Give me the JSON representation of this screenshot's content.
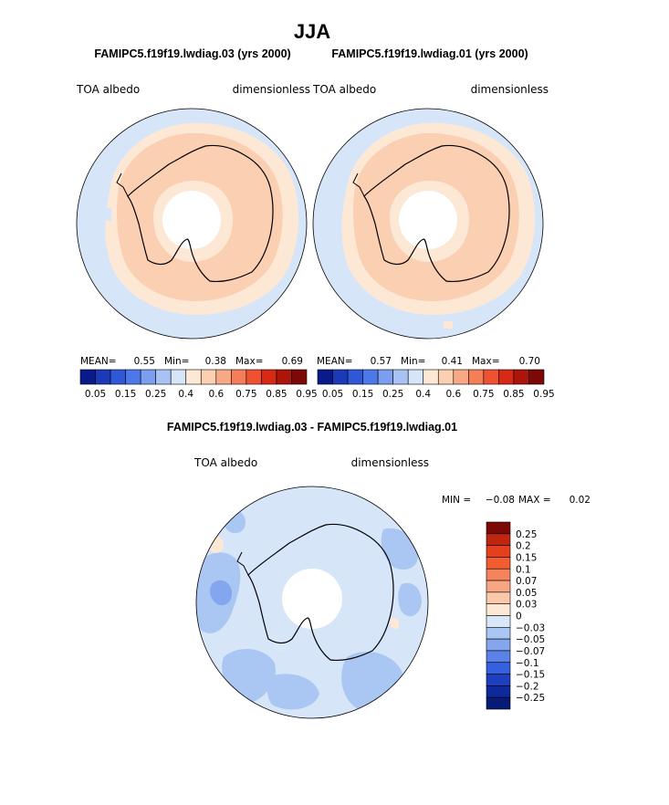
{
  "figure": {
    "title": "JJA",
    "subtitle_left": "FAMIPC5.f19f19.lwdiag.03 (yrs 2000)",
    "subtitle_right": "FAMIPC5.f19f19.lwdiag.01 (yrs 2000)",
    "diff_title": "FAMIPC5.f19f19.lwdiag.03 - FAMIPC5.f19f19.lwdiag.01"
  },
  "chart_data": [
    {
      "type": "heatmap",
      "projection": "south-polar-stereographic",
      "variable": "TOA albedo",
      "units": "dimensionless",
      "stats": {
        "mean_label": "MEAN=",
        "mean": "0.55",
        "min_label": "Min=",
        "min": "0.38",
        "max_label": "Max=",
        "max": "0.69"
      },
      "colorbar_ticks": [
        "0.05",
        "0.15",
        "0.25",
        "0.4",
        "0.6",
        "0.75",
        "0.85",
        "0.95"
      ],
      "colorbar_colors": [
        "#0a1a8a",
        "#1c3ab8",
        "#2f58d8",
        "#4d78ea",
        "#7b9ef0",
        "#a9c2f4",
        "#d6e6f8",
        "#fde8d6",
        "#fbcfb2",
        "#f7a884",
        "#f47e58",
        "#ef5232",
        "#d62a14",
        "#ad150b",
        "#7c0808"
      ]
    },
    {
      "type": "heatmap",
      "projection": "south-polar-stereographic",
      "variable": "TOA albedo",
      "units": "dimensionless",
      "stats": {
        "mean_label": "MEAN=",
        "mean": "0.57",
        "min_label": "Min=",
        "min": "0.41",
        "max_label": "Max=",
        "max": "0.70"
      },
      "colorbar_ticks": [
        "0.05",
        "0.15",
        "0.25",
        "0.4",
        "0.6",
        "0.75",
        "0.85",
        "0.95"
      ],
      "colorbar_colors": [
        "#0a1a8a",
        "#1c3ab8",
        "#2f58d8",
        "#4d78ea",
        "#7b9ef0",
        "#a9c2f4",
        "#d6e6f8",
        "#fde8d6",
        "#fbcfb2",
        "#f7a884",
        "#f47e58",
        "#ef5232",
        "#d62a14",
        "#ad150b",
        "#7c0808"
      ]
    },
    {
      "type": "heatmap",
      "projection": "south-polar-stereographic",
      "variable": "TOA albedo",
      "units": "dimensionless",
      "stats": {
        "min_label": "MIN =",
        "min": "−0.08",
        "max_label": "MAX =",
        "max": "0.02"
      },
      "colorbar_ticks": [
        "0.25",
        "0.2",
        "0.15",
        "0.1",
        "0.07",
        "0.05",
        "0.03",
        "0",
        "−0.03",
        "−0.05",
        "−0.07",
        "−0.1",
        "−0.15",
        "−0.2",
        "−0.25"
      ],
      "colorbar_colors": [
        "#7c0808",
        "#c0260f",
        "#e4401e",
        "#f25c2f",
        "#f5845c",
        "#f8a582",
        "#fbc8aa",
        "#fde8d6",
        "#d8e8f8",
        "#aac6f2",
        "#84a6ee",
        "#5a82e8",
        "#3560de",
        "#1d40c0",
        "#0e2a9a",
        "#061a78"
      ]
    }
  ],
  "colors": {
    "ocean_light_blue": "#d6e6f8",
    "peach_light": "#fde8d6",
    "peach": "#fbcfb2",
    "pole_hole": "#ffffff",
    "coastline": "#000000"
  }
}
